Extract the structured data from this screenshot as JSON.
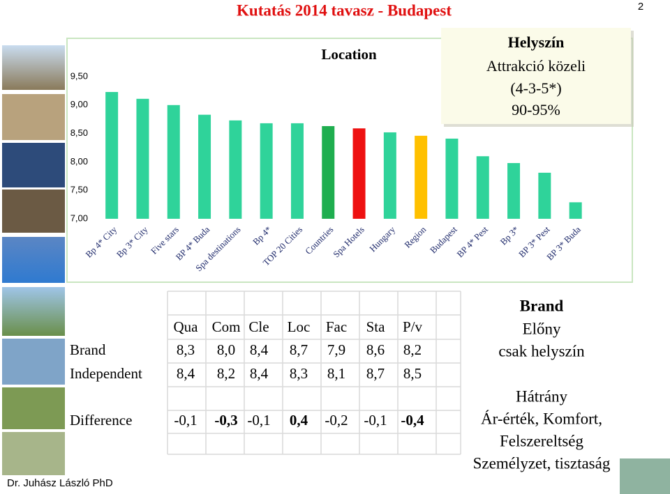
{
  "page_number": "2",
  "header": {
    "title": "Kutatás 2014 tavasz - Budapest"
  },
  "chart_data": {
    "type": "bar",
    "title": "Location",
    "categories": [
      "Bp 4* City",
      "Bp 3* City",
      "Five stars",
      "BP 4* Buda",
      "Spa destinations",
      "Bp 4*",
      "TOP 20 Cities",
      "Countries",
      "Spa Hotels",
      "Hungary",
      "Region",
      "Budapest",
      "BP 4* Pest",
      "Bp 3*",
      "BP 3* Pest",
      "BP 3* Buda"
    ],
    "values": [
      9.23,
      9.11,
      9.0,
      8.83,
      8.73,
      8.68,
      8.68,
      8.63,
      8.59,
      8.52,
      8.46,
      8.41,
      8.1,
      7.98,
      7.81,
      7.29
    ],
    "colors": [
      "#2fd39a",
      "#2fd39a",
      "#2fd39a",
      "#2fd39a",
      "#2fd39a",
      "#2fd39a",
      "#2fd39a",
      "#1fae4f",
      "#ee1111",
      "#2fd39a",
      "#ffc000",
      "#2fd39a",
      "#2fd39a",
      "#2fd39a",
      "#2fd39a",
      "#2fd39a"
    ],
    "ylim": [
      7,
      9.5
    ],
    "yticks": [
      {
        "value": 7,
        "label": "7,00"
      },
      {
        "value": 7.5,
        "label": "7,50"
      },
      {
        "value": 8,
        "label": "8,00"
      },
      {
        "value": 8.5,
        "label": "8,50"
      },
      {
        "value": 9,
        "label": "9,00"
      },
      {
        "value": 9.5,
        "label": "9,50"
      }
    ]
  },
  "callout": {
    "title": "Helyszín",
    "lines": [
      "Attrakció közeli",
      "(4-3-5*)",
      "90-95%"
    ]
  },
  "table": {
    "header": [
      "Qua",
      "Com",
      "Cle",
      "Loc",
      "Fac",
      "Sta",
      "P/v"
    ],
    "rows": [
      [
        "Brand",
        "8,3",
        "8,0",
        "8,4",
        "8,7",
        "7,9",
        "8,6",
        "8,2"
      ],
      [
        "Independent",
        "8,4",
        "8,2",
        "8,4",
        "8,3",
        "8,1",
        "8,7",
        "8,5"
      ],
      [
        "Difference",
        "-0,1",
        "-0,3",
        "-0,1",
        "0,4",
        "-0,2",
        "-0,1",
        "-0,4"
      ]
    ]
  },
  "summary": {
    "title": "Brand",
    "advantage": {
      "label": "Előny",
      "lines": [
        "csak helyszín"
      ]
    },
    "disadvantage": {
      "label": "Hátrány",
      "lines": [
        "Ár-érték, Komfort,",
        "Felszereltség",
        "Személyzet, tisztaság"
      ]
    }
  },
  "footer": "Dr. Juhász László PhD"
}
